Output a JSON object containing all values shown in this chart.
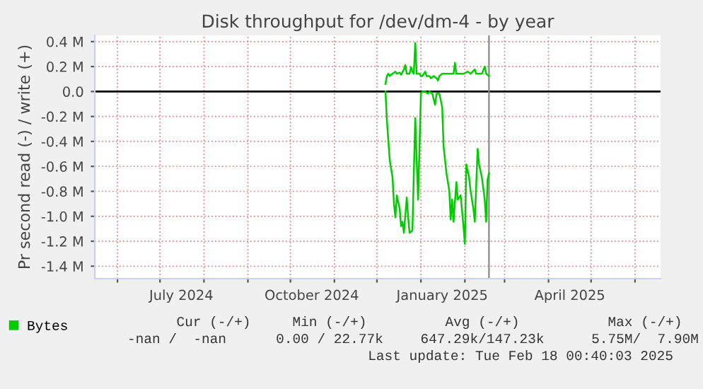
{
  "chart_data": {
    "type": "line",
    "title": "Disk throughput for /dev/dm-4 - by year",
    "ylabel": "Pr second read (-) / write (+)",
    "series": [
      {
        "name": "Bytes",
        "color": "#00cc00",
        "x": [
          "2024-12-07",
          "2024-12-08",
          "2024-12-09",
          "2024-12-10",
          "2024-12-11",
          "2024-12-12",
          "2024-12-14",
          "2024-12-15",
          "2024-12-17",
          "2024-12-18",
          "2024-12-20",
          "2024-12-21",
          "2024-12-22",
          "2024-12-24",
          "2024-12-25",
          "2024-12-26",
          "2024-12-27",
          "2024-12-28",
          "2024-12-29",
          "2024-12-31",
          "2025-01-01",
          "2025-01-02",
          "2025-01-04",
          "2025-01-05",
          "2025-01-07",
          "2025-01-08",
          "2025-01-10",
          "2025-01-12",
          "2025-01-13",
          "2025-01-14",
          "2025-01-16",
          "2025-01-19",
          "2025-01-21",
          "2025-01-24",
          "2025-01-25",
          "2025-01-26",
          "2025-01-31",
          "2025-02-03",
          "2025-02-05",
          "2025-02-08",
          "2025-02-09",
          "2025-02-13",
          "2025-02-15",
          "2025-02-16",
          "2025-02-18"
        ],
        "values": [
          0.06,
          0.124,
          0.142,
          0.124,
          0.135,
          0.142,
          0.159,
          0.142,
          0.152,
          0.135,
          0.177,
          0.212,
          0.142,
          0.142,
          0.195,
          0.159,
          0.142,
          0.389,
          0.142,
          0.142,
          0.124,
          0.124,
          0.159,
          0.124,
          0.124,
          0.106,
          0.124,
          0.106,
          0.088,
          0.124,
          0.142,
          0.142,
          0.142,
          0.142,
          0.23,
          0.142,
          0.142,
          0.159,
          0.142,
          0.177,
          0.142,
          0.142,
          0.2,
          0.142,
          0.124
        ]
      },
      {
        "color": "#00cc00",
        "x": [
          "2024-12-07",
          "2024-12-08",
          "2024-12-10",
          "2024-12-12",
          "2024-12-13",
          "2024-12-14",
          "2024-12-15",
          "2024-12-17",
          "2024-12-18",
          "2024-12-19",
          "2024-12-20",
          "2024-12-22",
          "2024-12-23",
          "2024-12-24",
          "2024-12-26",
          "2024-12-27",
          "2024-12-28",
          "2024-12-30",
          "2024-12-31",
          "2025-01-01",
          "2025-01-02",
          "2025-01-04",
          "2025-01-06",
          "2025-01-07",
          "2025-01-09",
          "2025-01-11",
          "2025-01-12",
          "2025-01-14",
          "2025-01-16",
          "2025-01-17",
          "2025-01-19",
          "2025-01-21",
          "2025-01-22",
          "2025-01-23",
          "2025-01-24",
          "2025-01-26",
          "2025-01-27",
          "2025-01-29",
          "2025-01-31",
          "2025-02-01",
          "2025-02-02",
          "2025-02-04",
          "2025-02-05",
          "2025-02-07",
          "2025-02-08",
          "2025-02-10",
          "2025-02-11",
          "2025-02-13",
          "2025-02-15",
          "2025-02-16",
          "2025-02-17",
          "2025-02-18"
        ],
        "values": [
          0,
          -0.23,
          -0.549,
          -0.69,
          -0.903,
          -1.009,
          -0.832,
          -0.938,
          -1.08,
          -1.044,
          -1.133,
          -0.85,
          -1.009,
          -1.133,
          -1.115,
          -0.655,
          -0.212,
          -0.867,
          -0.442,
          -0.018,
          0,
          0,
          -0.018,
          0,
          -0.018,
          -0.106,
          -0.018,
          -0.018,
          -0.124,
          -0.442,
          -0.655,
          -0.796,
          -1.027,
          -0.867,
          -1.044,
          -0.726,
          -0.867,
          -0.832,
          -1.08,
          -1.221,
          -0.584,
          -0.69,
          -0.796,
          -0.938,
          -1.044,
          -0.46,
          -0.584,
          -0.69,
          -0.867,
          -1.044,
          -0.708,
          -0.655
        ]
      }
    ],
    "xlim": [
      "2024-05-16",
      "2025-06-19"
    ],
    "xticks": [
      {
        "value": "2024-06-01",
        "label": null
      },
      {
        "value": "2024-07-01",
        "label": null
      },
      {
        "value": "2024-08-01",
        "label": null
      },
      {
        "value": "2024-09-01",
        "label": null
      },
      {
        "value": "2024-10-01",
        "label": null
      },
      {
        "value": "2024-11-01",
        "label": null
      },
      {
        "value": "2024-12-01",
        "label": null
      },
      {
        "value": "2025-01-01",
        "label": null
      },
      {
        "value": "2025-02-01",
        "label": null
      },
      {
        "value": "2025-03-01",
        "label": null
      },
      {
        "value": "2025-04-01",
        "label": null
      },
      {
        "value": "2025-05-01",
        "label": null
      },
      {
        "value": "2025-06-01",
        "label": null
      },
      {
        "value": "2024-07-16",
        "label": "July 2024"
      },
      {
        "value": "2024-10-16",
        "label": "October 2024"
      },
      {
        "value": "2025-01-16",
        "label": "January 2025"
      },
      {
        "value": "2025-04-16",
        "label": "April 2025"
      }
    ],
    "ylim": [
      -1.5,
      0.45
    ],
    "yticks": [
      {
        "value": 0.4,
        "label": "0.4 M"
      },
      {
        "value": 0.2,
        "label": "0.2 M"
      },
      {
        "value": 0,
        "label": "0.0"
      },
      {
        "value": -0.2,
        "label": "-0.2 M"
      },
      {
        "value": -0.4,
        "label": "-0.4 M"
      },
      {
        "value": -0.6,
        "label": "-0.6 M"
      },
      {
        "value": -0.8,
        "label": "-0.8 M"
      },
      {
        "value": -1.0,
        "label": "-1.0 M"
      },
      {
        "value": -1.2,
        "label": "-1.2 M"
      },
      {
        "value": -1.4,
        "label": "-1.4 M"
      }
    ],
    "grid": true,
    "ref_lines": [
      {
        "axis": "y",
        "value": 0,
        "color": "#000000"
      },
      {
        "axis": "x",
        "value": "2025-02-18",
        "color": "#888888"
      }
    ],
    "legend": "bottom left",
    "annotations": [
      "Cur (-/+)",
      "Min (-/+)",
      "Avg (-/+)",
      "Max (-/+)",
      "-nan /  -nan",
      "0.00 / 22.77k",
      "647.29k/147.23k",
      "5.75M/  7.90M",
      "Last update: Tue Feb 18 00:40:03 2025"
    ]
  }
}
